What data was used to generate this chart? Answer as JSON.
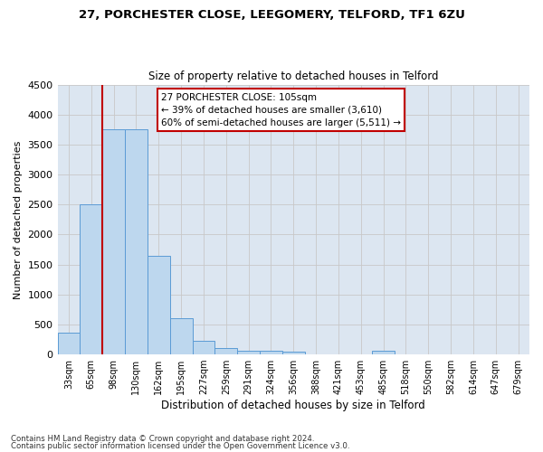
{
  "title": "27, PORCHESTER CLOSE, LEEGOMERY, TELFORD, TF1 6ZU",
  "subtitle": "Size of property relative to detached houses in Telford",
  "xlabel": "Distribution of detached houses by size in Telford",
  "ylabel": "Number of detached properties",
  "categories": [
    "33sqm",
    "65sqm",
    "98sqm",
    "130sqm",
    "162sqm",
    "195sqm",
    "227sqm",
    "259sqm",
    "291sqm",
    "324sqm",
    "356sqm",
    "388sqm",
    "421sqm",
    "453sqm",
    "485sqm",
    "518sqm",
    "550sqm",
    "582sqm",
    "614sqm",
    "647sqm",
    "679sqm"
  ],
  "values": [
    370,
    2500,
    3760,
    3760,
    1640,
    600,
    230,
    105,
    65,
    55,
    50,
    0,
    0,
    0,
    65,
    0,
    0,
    0,
    0,
    0,
    0
  ],
  "bar_color": "#bdd7ee",
  "bar_edgecolor": "#5b9bd5",
  "grid_color": "#c8c8c8",
  "bg_color": "#dce6f1",
  "vline_color": "#c00000",
  "annotation_text": "27 PORCHESTER CLOSE: 105sqm\n← 39% of detached houses are smaller (3,610)\n60% of semi-detached houses are larger (5,511) →",
  "annotation_box_color": "#c00000",
  "ylim": [
    0,
    4500
  ],
  "yticks": [
    0,
    500,
    1000,
    1500,
    2000,
    2500,
    3000,
    3500,
    4000,
    4500
  ],
  "footnote1": "Contains HM Land Registry data © Crown copyright and database right 2024.",
  "footnote2": "Contains public sector information licensed under the Open Government Licence v3.0."
}
